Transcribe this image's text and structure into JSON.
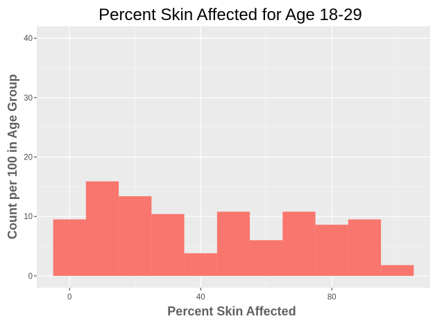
{
  "chart_data": {
    "type": "bar",
    "title": "Percent Skin Affected for Age 18-29",
    "xlabel": "Percent Skin Affected",
    "ylabel": "Count per 100 in Age Group",
    "xlim": [
      -10,
      110
    ],
    "ylim": [
      -2,
      42
    ],
    "x_ticks": [
      0,
      40,
      80
    ],
    "y_ticks": [
      0,
      10,
      20,
      30,
      40
    ],
    "x_tick_labels": [
      "0",
      "40",
      "80"
    ],
    "y_tick_labels": [
      "0",
      "10",
      "20",
      "30",
      "40"
    ],
    "bin_width": 10,
    "bin_centers": [
      0,
      10,
      20,
      30,
      40,
      50,
      60,
      70,
      80,
      90,
      100
    ],
    "values": [
      9.5,
      15.9,
      13.4,
      10.4,
      3.8,
      10.8,
      6.0,
      10.8,
      8.6,
      9.5,
      1.8
    ],
    "bar_color": "#F8766D",
    "panel_color": "#EBEBEB",
    "grid": true
  }
}
